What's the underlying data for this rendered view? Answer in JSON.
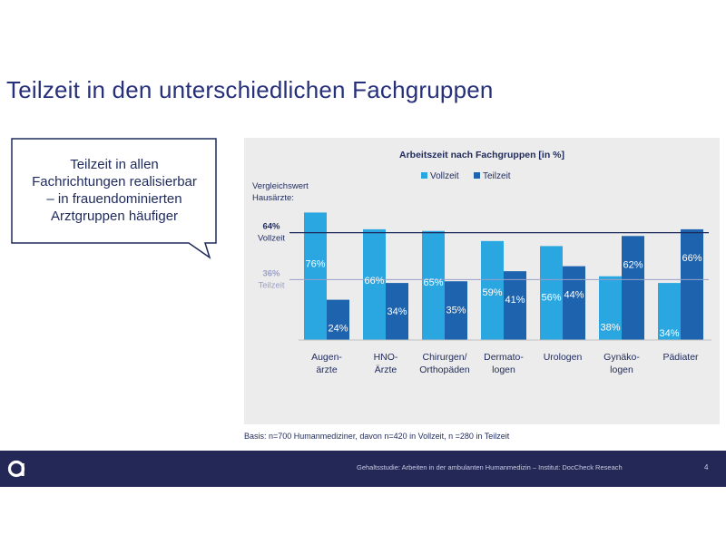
{
  "slide": {
    "title": "Teilzeit in den unterschiedlichen Fachgruppen"
  },
  "callout": {
    "lines": [
      "Teilzeit in allen",
      "Fachrichtungen realisierbar",
      "– in frauendominierten",
      "Arztgruppen häufiger"
    ]
  },
  "chart_data": {
    "type": "bar",
    "title": "Arbeitszeit nach Fachgruppen [in %]",
    "categories": [
      [
        "Augen-",
        "ärzte"
      ],
      [
        "HNO-",
        "Ärzte"
      ],
      [
        "Chirurgen/",
        "Orthopäden"
      ],
      [
        "Dermato-",
        "logen"
      ],
      [
        "Urologen"
      ],
      [
        "Gynäko-",
        "logen"
      ],
      [
        "Pädiater"
      ]
    ],
    "series": [
      {
        "name": "Vollzeit",
        "color": "#2aa6e0",
        "values": [
          76,
          66,
          65,
          59,
          56,
          38,
          34
        ]
      },
      {
        "name": "Teilzeit",
        "color": "#1e63ad",
        "values": [
          24,
          34,
          35,
          41,
          44,
          62,
          66
        ]
      }
    ],
    "value_suffix": "%",
    "legend_position": "top",
    "ylim": [
      0,
      80
    ],
    "reference": {
      "heading": [
        "Vergleichswert",
        "Hausärzte:"
      ],
      "lines": [
        {
          "value": 64,
          "value_label": "64%",
          "name": "Vollzeit",
          "color": "#1f2a5c"
        },
        {
          "value": 36,
          "value_label": "36%",
          "name": "Teilzeit",
          "color": "#9a9fc8"
        }
      ]
    }
  },
  "footnote": "Basis: n=700 Humanmediziner, davon n=420 in Vollzeit, n =280 in Teilzeit",
  "footer": {
    "logo_icon": "docchek-a-logo-icon",
    "text": "Gehaltsstudie: Arbeiten in der ambulanten Humanmedizin – Institut: DocCheck Reseach",
    "page": "4"
  }
}
